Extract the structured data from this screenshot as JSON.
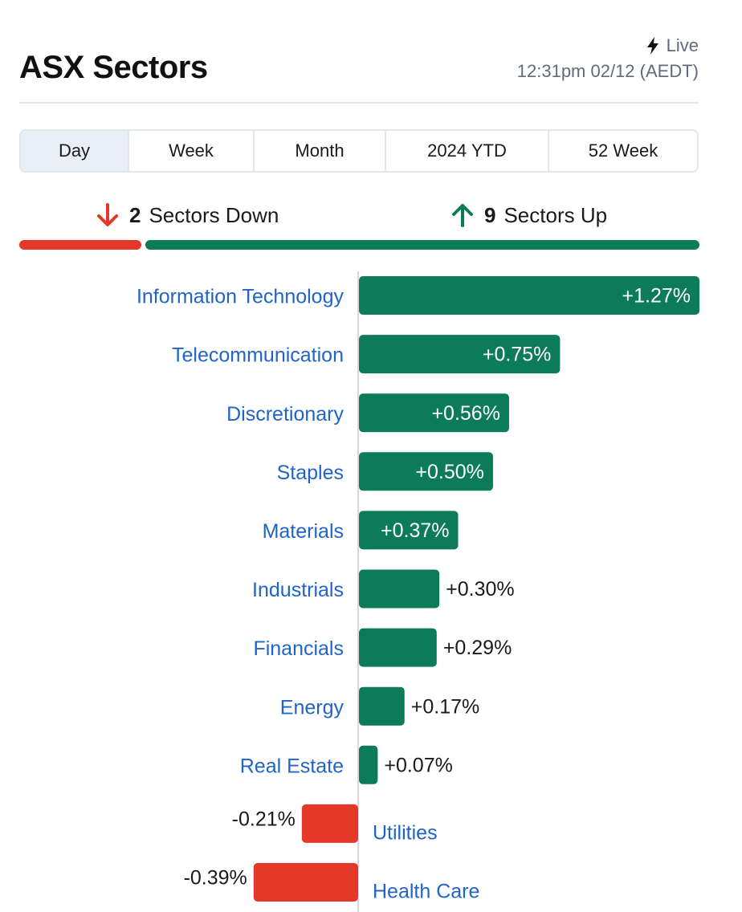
{
  "header": {
    "title": "ASX Sectors",
    "live_label": "Live",
    "timestamp": "12:31pm 02/12 (AEDT)"
  },
  "tabs": [
    {
      "label": "Day",
      "active": true
    },
    {
      "label": "Week",
      "active": false
    },
    {
      "label": "Month",
      "active": false
    },
    {
      "label": "2024 YTD",
      "active": false
    },
    {
      "label": "52 Week",
      "active": false
    }
  ],
  "summary": {
    "down_count": "2",
    "down_label": "Sectors Down",
    "up_count": "9",
    "up_label": "Sectors Up"
  },
  "colors": {
    "up": "#0c7b5a",
    "down": "#e4392a",
    "label": "#1f64c8",
    "active_tab": "#e8eff7"
  },
  "icons": {
    "live": "lightning-bolt-icon",
    "down": "arrow-down-icon",
    "up": "arrow-up-icon"
  },
  "chart_data": {
    "type": "bar",
    "orientation": "horizontal",
    "title": "",
    "xlabel": "",
    "ylabel": "",
    "categories": [
      "Information Technology",
      "Telecommunication",
      "Discretionary",
      "Staples",
      "Materials",
      "Industrials",
      "Financials",
      "Energy",
      "Real Estate",
      "Utilities",
      "Health Care"
    ],
    "values": [
      1.27,
      0.75,
      0.56,
      0.5,
      0.37,
      0.3,
      0.29,
      0.17,
      0.07,
      -0.21,
      -0.39
    ],
    "value_labels": [
      "+1.27%",
      "+0.75%",
      "+0.56%",
      "+0.50%",
      "+0.37%",
      "+0.30%",
      "+0.29%",
      "+0.17%",
      "+0.07%",
      "-0.21%",
      "-0.39%"
    ],
    "unit": "%",
    "grid": false,
    "legend": "none"
  }
}
